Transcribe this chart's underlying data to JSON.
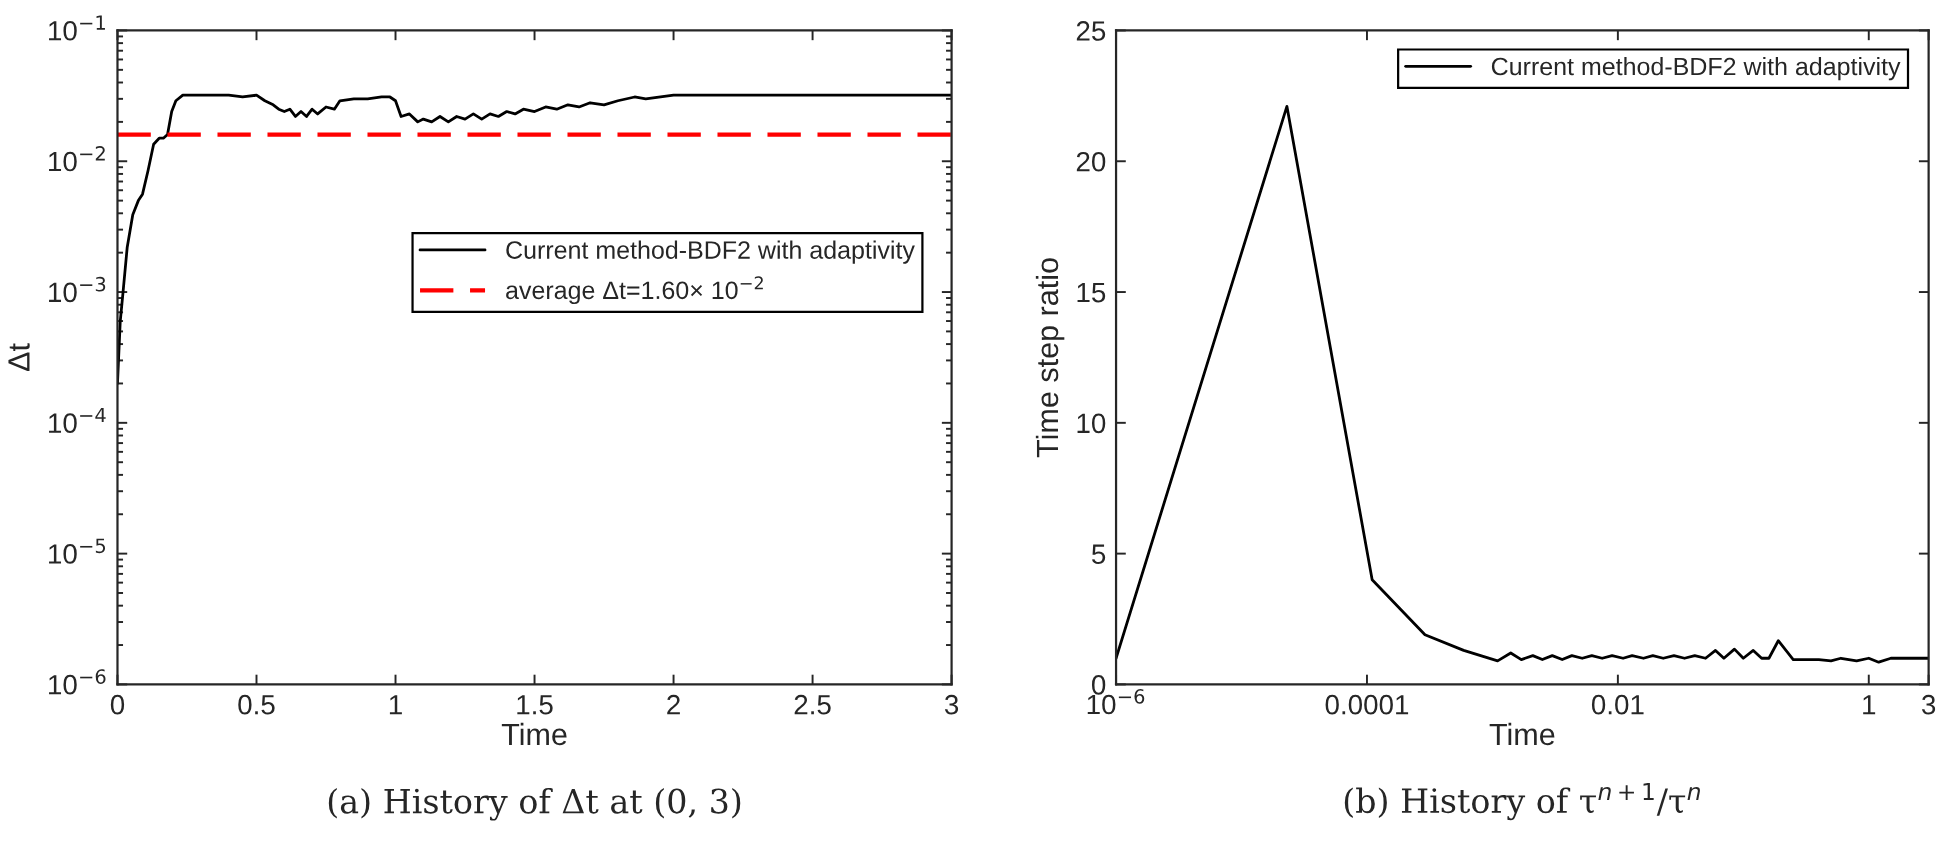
{
  "chart_data": [
    {
      "type": "line",
      "xlabel": "Time",
      "ylabel": "Δt",
      "log": "y",
      "xlim": [
        0,
        3
      ],
      "ylim": [
        1e-06,
        0.1
      ],
      "xticks": [
        0,
        0.5,
        1,
        1.5,
        2,
        2.5,
        3
      ],
      "yticks": [
        {
          "value": 1e-06,
          "label": "10$^{−6}$"
        },
        {
          "value": 1e-05,
          "label": "10$^{−5}$"
        },
        {
          "value": 0.0001,
          "label": "10$^{−4}$"
        },
        {
          "value": 0.001,
          "label": "10$^{−3}$"
        },
        {
          "value": 0.01,
          "label": "10$^{−2}$"
        },
        {
          "value": 0.1,
          "label": "10$^{−1}$"
        }
      ],
      "legend": "right",
      "grid": false,
      "series": [
        {
          "name": "Current method-BDF2 with adaptivity",
          "color": "#000000",
          "x": [
            0,
            0.01,
            0.02,
            0.035,
            0.055,
            0.075,
            0.09,
            0.11,
            0.13,
            0.15,
            0.165,
            0.18,
            0.195,
            0.21,
            0.235,
            0.3,
            0.4,
            0.45,
            0.5,
            0.53,
            0.56,
            0.58,
            0.6,
            0.62,
            0.64,
            0.66,
            0.68,
            0.7,
            0.72,
            0.75,
            0.78,
            0.8,
            0.85,
            0.9,
            0.95,
            0.98,
            1.0,
            1.02,
            1.05,
            1.08,
            1.1,
            1.13,
            1.16,
            1.19,
            1.22,
            1.25,
            1.28,
            1.31,
            1.34,
            1.37,
            1.4,
            1.43,
            1.46,
            1.5,
            1.54,
            1.58,
            1.62,
            1.66,
            1.7,
            1.75,
            1.8,
            1.86,
            1.9,
            2.0,
            2.2,
            2.5,
            2.8,
            3.0
          ],
          "values": [
            0.0002,
            0.0006,
            0.001,
            0.0022,
            0.0039,
            0.005,
            0.0056,
            0.0085,
            0.0135,
            0.015,
            0.015,
            0.016,
            0.024,
            0.029,
            0.032,
            0.032,
            0.032,
            0.031,
            0.032,
            0.029,
            0.027,
            0.025,
            0.024,
            0.025,
            0.022,
            0.024,
            0.022,
            0.025,
            0.023,
            0.026,
            0.025,
            0.029,
            0.03,
            0.03,
            0.031,
            0.031,
            0.029,
            0.022,
            0.023,
            0.02,
            0.021,
            0.02,
            0.022,
            0.02,
            0.022,
            0.021,
            0.023,
            0.021,
            0.023,
            0.022,
            0.024,
            0.023,
            0.025,
            0.024,
            0.026,
            0.025,
            0.027,
            0.026,
            0.028,
            0.027,
            0.029,
            0.031,
            0.03,
            0.032,
            0.032,
            0.032,
            0.032,
            0.032
          ]
        }
      ],
      "ref_lines": [
        {
          "axis": "y",
          "value": 0.016,
          "label": "average Δt=1.60× 10$^{−2}$",
          "color": "#ff0000",
          "line_style": "dashed"
        }
      ],
      "annotations": [
        "(a) History of Δt at (0, 3)"
      ]
    },
    {
      "type": "line",
      "xlabel": "Time",
      "ylabel": "Time step ratio",
      "log": "x",
      "xlim": [
        1e-06,
        3
      ],
      "ylim": [
        0,
        25
      ],
      "xticks": [
        {
          "value": 1e-06,
          "label": "10$^{−6}$"
        },
        {
          "value": 0.0001,
          "label": "0.0001"
        },
        {
          "value": 0.01,
          "label": "0.01"
        },
        1,
        3
      ],
      "yticks": [
        0,
        5,
        10,
        15,
        20,
        25
      ],
      "legend": "top right",
      "grid": false,
      "series": [
        {
          "name": "Current method-BDF2 with adaptivity",
          "color": "#000000",
          "x": [
            1e-06,
            2.3e-05,
            0.00011,
            0.00029,
            0.00059,
            0.0011,
            0.0014,
            0.0017,
            0.0021,
            0.0025,
            0.003,
            0.0036,
            0.0043,
            0.0052,
            0.0062,
            0.0075,
            0.009,
            0.011,
            0.013,
            0.016,
            0.019,
            0.023,
            0.028,
            0.034,
            0.041,
            0.05,
            0.06,
            0.07,
            0.085,
            0.1,
            0.12,
            0.14,
            0.16,
            0.19,
            0.25,
            0.4,
            0.5,
            0.6,
            0.8,
            1.0,
            1.2,
            1.5,
            2.0,
            3.0
          ],
          "values": [
            1.0,
            22.1,
            4.0,
            1.9,
            1.3,
            0.9,
            1.2,
            0.95,
            1.1,
            0.95,
            1.1,
            0.95,
            1.1,
            1.0,
            1.1,
            1.0,
            1.1,
            1.0,
            1.1,
            1.0,
            1.1,
            1.0,
            1.1,
            1.0,
            1.1,
            1.0,
            1.3,
            1.0,
            1.35,
            1.0,
            1.3,
            1.0,
            1.0,
            1.67,
            0.95,
            0.95,
            0.9,
            1.0,
            0.9,
            1.0,
            0.85,
            1.0,
            1.0,
            1.0
          ]
        }
      ],
      "annotations": [
        "(b) History of τ$^{n+1}$/τ$^{n}$"
      ]
    }
  ]
}
